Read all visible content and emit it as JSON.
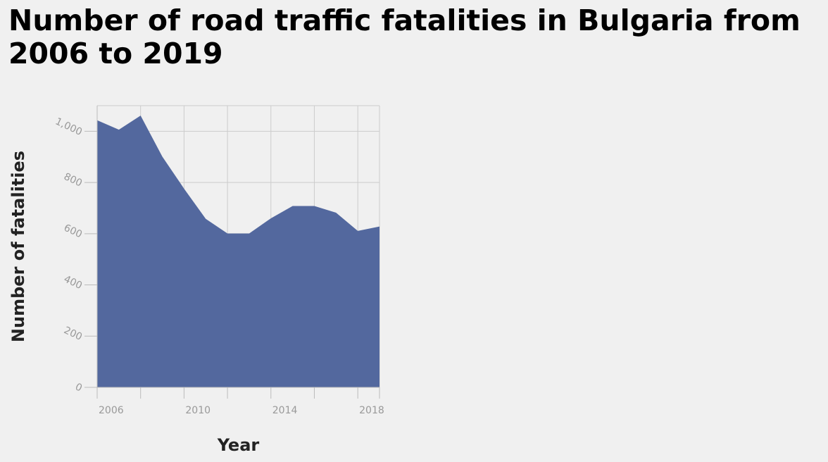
{
  "chart_data": {
    "type": "area",
    "title": "Number of road traffic fatalities in Bulgaria from 2006 to 2019",
    "xlabel": "Year",
    "ylabel": "Number of fatalities",
    "x": [
      2006,
      2007,
      2008,
      2009,
      2010,
      2011,
      2012,
      2013,
      2014,
      2015,
      2016,
      2017,
      2018,
      2019
    ],
    "values": [
      1043,
      1006,
      1061,
      901,
      776,
      658,
      601,
      601,
      660,
      708,
      708,
      682,
      611,
      628
    ],
    "xlim": [
      2006,
      2019
    ],
    "ylim": [
      0,
      1100
    ],
    "x_ticks": [
      2006,
      2010,
      2014,
      2018
    ],
    "x_tick_labels": [
      "2006",
      "2010",
      "2014",
      "2018"
    ],
    "y_ticks": [
      0,
      200,
      400,
      600,
      800,
      1000
    ],
    "y_tick_labels": [
      "0",
      "200",
      "400",
      "600",
      "800",
      "1,000"
    ],
    "x_grid": [
      2006,
      2008,
      2010,
      2012,
      2014,
      2016,
      2018,
      2019
    ],
    "grid": true,
    "legend": "none",
    "colors": {
      "fill": "#53689e",
      "grid": "#cccccc",
      "axis": "#bbbbbb"
    }
  }
}
